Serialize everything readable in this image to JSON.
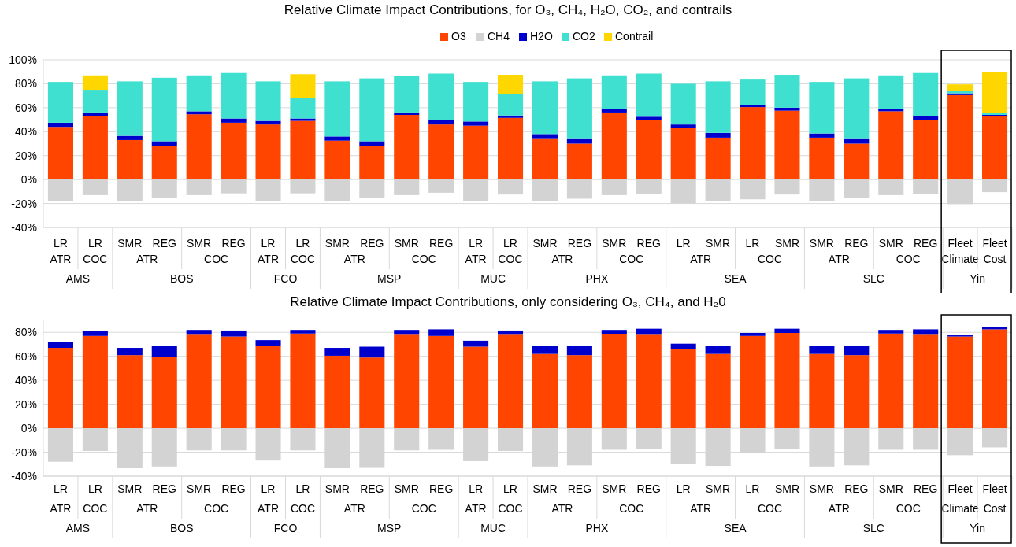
{
  "chart_data": [
    {
      "type": "bar",
      "title": "Relative Climate Impact Contributions, for O₃, CH₄, H₂O, CO₂, and contrails",
      "stacked": true,
      "legend": "top",
      "grid": "y",
      "categories": [
        "LR",
        "LR",
        "SMR",
        "REG",
        "SMR",
        "REG",
        "LR",
        "LR",
        "SMR",
        "REG",
        "SMR",
        "REG",
        "LR",
        "LR",
        "SMR",
        "REG",
        "SMR",
        "REG",
        "LR",
        "SMR",
        "LR",
        "SMR",
        "SMR",
        "REG",
        "SMR",
        "REG",
        "Fleet",
        "Fleet"
      ],
      "annotations": [
        "ATR",
        "COC",
        "ATR",
        "COC",
        "ATR",
        "COC",
        "ATR",
        "COC",
        "ATR",
        "COC",
        "ATR",
        "COC",
        "ATR",
        "COC",
        "ATR",
        "COC",
        "Climate",
        "Cost",
        "AMS",
        "BOS",
        "FCO",
        "MSP",
        "MUC",
        "PHX",
        "SEA",
        "SLC",
        "Yin"
      ],
      "ylim": [
        -40,
        100
      ],
      "yticks": [
        {
          "value": -40,
          "label": "-40%"
        },
        {
          "value": -20,
          "label": "-20%"
        },
        {
          "value": 0,
          "label": "0%"
        },
        {
          "value": 20,
          "label": "20%"
        },
        {
          "value": 40,
          "label": "40%"
        },
        {
          "value": 60,
          "label": "60%"
        },
        {
          "value": 80,
          "label": "80%"
        },
        {
          "value": 100,
          "label": "100%"
        }
      ],
      "series": [
        {
          "name": "O3",
          "color": "#ff4500",
          "values": [
            44,
            53,
            33,
            28,
            54.5,
            47.5,
            46,
            49,
            32.5,
            28,
            54,
            46,
            45,
            51.5,
            34.5,
            30,
            56,
            49.5,
            43,
            35,
            60.5,
            57.5,
            35,
            30,
            57,
            50,
            70.5,
            53
          ]
        },
        {
          "name": "CH4",
          "color": "#d3d3d3",
          "values": [
            -18,
            -13,
            -18,
            -15,
            -13,
            -11.5,
            -18,
            -11.5,
            -18,
            -15,
            -13,
            -11,
            -18,
            -12.5,
            -18,
            -16,
            -13,
            -12,
            -20,
            -18,
            -16.5,
            -12.5,
            -18,
            -15.5,
            -13,
            -12,
            -20.5,
            -10.5
          ]
        },
        {
          "name": "H2O",
          "color": "#0000cd",
          "values": [
            3.5,
            3,
            3.5,
            4,
            2.5,
            3.5,
            3,
            2,
            3.5,
            4,
            2,
            3.5,
            3.5,
            2,
            3.5,
            4.5,
            3,
            3,
            3,
            4,
            1.5,
            2.5,
            3.5,
            4.5,
            2,
            3,
            1.5,
            1
          ]
        },
        {
          "name": "CO2",
          "color": "#40e0d0",
          "values": [
            34,
            19,
            45.5,
            53,
            30,
            38,
            33,
            17,
            46,
            52.5,
            30.5,
            39,
            33,
            18,
            44,
            50,
            28,
            36,
            34,
            43,
            21.5,
            27.5,
            43,
            50,
            28,
            36,
            2,
            1.5
          ]
        },
        {
          "name": "Contrail",
          "color": "#ffd700",
          "values": [
            null,
            12,
            null,
            null,
            null,
            null,
            null,
            20,
            null,
            null,
            null,
            null,
            null,
            16,
            null,
            null,
            null,
            null,
            null,
            null,
            null,
            null,
            null,
            null,
            null,
            null,
            5.5,
            34
          ]
        }
      ]
    },
    {
      "type": "bar",
      "title": "Relative Climate Impact Contributions, only considering O₃, CH₄, and H₂0",
      "stacked": true,
      "grid": "y",
      "categories": [
        "LR",
        "LR",
        "SMR",
        "REG",
        "SMR",
        "REG",
        "LR",
        "LR",
        "SMR",
        "REG",
        "SMR",
        "REG",
        "LR",
        "LR",
        "SMR",
        "REG",
        "SMR",
        "REG",
        "LR",
        "SMR",
        "LR",
        "SMR",
        "SMR",
        "REG",
        "SMR",
        "REG",
        "Fleet",
        "Fleet"
      ],
      "annotations": [
        "ATR",
        "COC",
        "ATR",
        "COC",
        "ATR",
        "COC",
        "ATR",
        "COC",
        "ATR",
        "COC",
        "ATR",
        "COC",
        "ATR",
        "COC",
        "ATR",
        "COC",
        "Climate",
        "Cost",
        "AMS",
        "BOS",
        "FCO",
        "MSP",
        "MUC",
        "PHX",
        "SEA",
        "SLC",
        "Yin"
      ],
      "ylim": [
        -40,
        90
      ],
      "yticks": [
        {
          "value": -40,
          "label": "-40%"
        },
        {
          "value": -20,
          "label": "-20%"
        },
        {
          "value": 0,
          "label": "0%"
        },
        {
          "value": 20,
          "label": "20%"
        },
        {
          "value": 40,
          "label": "40%"
        },
        {
          "value": 60,
          "label": "60%"
        },
        {
          "value": 80,
          "label": "80%"
        }
      ],
      "series": [
        {
          "color": "#ff4500",
          "values": [
            67,
            77,
            61,
            59.5,
            78,
            76.5,
            69,
            79,
            60.5,
            59,
            78,
            77,
            68,
            78,
            62,
            61,
            78.5,
            78,
            66,
            62,
            77,
            79.5,
            62,
            61,
            79,
            78,
            76.5,
            82.5
          ]
        },
        {
          "color": "#d3d3d3",
          "values": [
            -28,
            -19,
            -33,
            -32,
            -18.5,
            -18.5,
            -27,
            -18.5,
            -33,
            -32.5,
            -18.5,
            -18,
            -27.5,
            -19,
            -32,
            -31,
            -18,
            -17.5,
            -30,
            -31.5,
            -21,
            -17.5,
            -32,
            -31,
            -18,
            -18,
            -22.5,
            -16
          ]
        },
        {
          "color": "#0000cd",
          "values": [
            5,
            4,
            6,
            9,
            4,
            5,
            4.5,
            3,
            6.5,
            9,
            4,
            5.5,
            5,
            3.5,
            6.5,
            8,
            3.5,
            5,
            4.5,
            6.5,
            2.5,
            3.5,
            6.5,
            8,
            3,
            4.5,
            1,
            2
          ]
        }
      ]
    }
  ]
}
